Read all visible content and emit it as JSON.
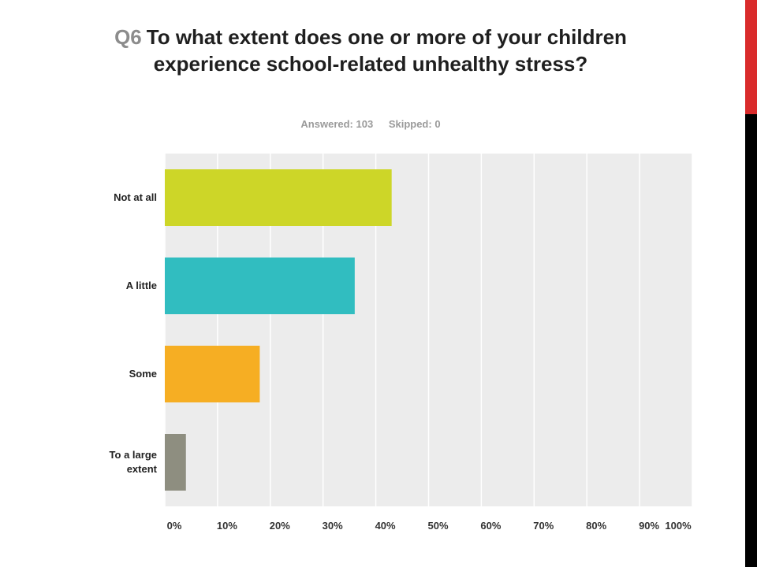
{
  "header": {
    "question_number": "Q6",
    "question_text": "To what extent does one or more of your children experience school-related unhealthy stress?",
    "answered": "Answered: 103",
    "skipped": "Skipped: 0"
  },
  "colors": {
    "side_strip": "#000000",
    "side_accent": "#d92b2b",
    "plot_background": "#ececec",
    "gridline": "#ffffff"
  },
  "chart_data": {
    "type": "bar",
    "orientation": "horizontal",
    "categories": [
      "Not at all",
      "A little",
      "Some",
      "To a large extent"
    ],
    "values": [
      43,
      36,
      18,
      4
    ],
    "bar_colors": [
      "#cdd628",
      "#31bdc0",
      "#f6ae23",
      "#8e8e80"
    ],
    "value_unit": "%",
    "xlim": [
      0,
      100
    ],
    "xticks": [
      "0%",
      "10%",
      "20%",
      "30%",
      "40%",
      "50%",
      "60%",
      "70%",
      "80%",
      "90%",
      "100%"
    ],
    "grid": true,
    "legend": "none"
  }
}
